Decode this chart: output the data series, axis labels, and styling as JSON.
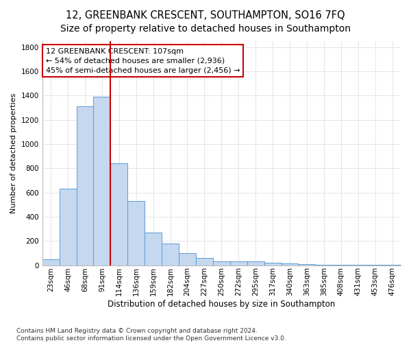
{
  "title": "12, GREENBANK CRESCENT, SOUTHAMPTON, SO16 7FQ",
  "subtitle": "Size of property relative to detached houses in Southampton",
  "xlabel": "Distribution of detached houses by size in Southampton",
  "ylabel": "Number of detached properties",
  "categories": [
    "23sqm",
    "46sqm",
    "68sqm",
    "91sqm",
    "114sqm",
    "136sqm",
    "159sqm",
    "182sqm",
    "204sqm",
    "227sqm",
    "250sqm",
    "272sqm",
    "295sqm",
    "317sqm",
    "340sqm",
    "363sqm",
    "385sqm",
    "408sqm",
    "431sqm",
    "453sqm",
    "476sqm"
  ],
  "values": [
    50,
    630,
    1310,
    1390,
    840,
    530,
    270,
    180,
    100,
    60,
    30,
    30,
    30,
    20,
    15,
    10,
    5,
    5,
    5,
    5,
    5
  ],
  "bar_color": "#c5d8f0",
  "bar_edge_color": "#5b9bd5",
  "vline_color": "#cc0000",
  "annotation_text": "12 GREENBANK CRESCENT: 107sqm\n← 54% of detached houses are smaller (2,936)\n45% of semi-detached houses are larger (2,456) →",
  "annotation_box_color": "#ffffff",
  "annotation_box_edge": "#cc0000",
  "ylim": [
    0,
    1850
  ],
  "yticks": [
    0,
    200,
    400,
    600,
    800,
    1000,
    1200,
    1400,
    1600,
    1800
  ],
  "footer": "Contains HM Land Registry data © Crown copyright and database right 2024.\nContains public sector information licensed under the Open Government Licence v3.0.",
  "bg_color": "#ffffff",
  "plot_bg_color": "#ffffff",
  "title_fontsize": 10.5,
  "xlabel_fontsize": 8.5,
  "ylabel_fontsize": 8,
  "tick_fontsize": 7.5,
  "annotation_fontsize": 8,
  "footer_fontsize": 6.5,
  "grid_color": "#e0e0e0"
}
